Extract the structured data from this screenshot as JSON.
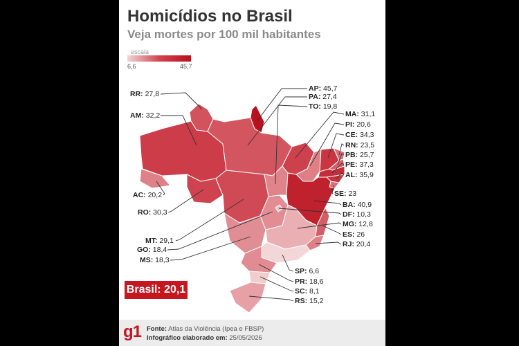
{
  "title": "Homicídios no Brasil",
  "subtitle": "Veja mortes por 100 mil habitantes",
  "scale": {
    "label": "escala",
    "min": "6,6",
    "max": "45,7",
    "min_value": 6.6,
    "max_value": 45.7
  },
  "states": [
    {
      "uf": "RR",
      "text": "27,8",
      "value": 27.8
    },
    {
      "uf": "AM",
      "text": "32,2",
      "value": 32.2
    },
    {
      "uf": "AC",
      "text": "20,2",
      "value": 20.2
    },
    {
      "uf": "RO",
      "text": "30,3",
      "value": 30.3
    },
    {
      "uf": "MT",
      "text": "29,1",
      "value": 29.1
    },
    {
      "uf": "GO",
      "text": "18,4",
      "value": 18.4
    },
    {
      "uf": "MS",
      "text": "18,3",
      "value": 18.3
    },
    {
      "uf": "AP",
      "text": "45,7",
      "value": 45.7
    },
    {
      "uf": "PA",
      "text": "27,4",
      "value": 27.4
    },
    {
      "uf": "TO",
      "text": "19,8",
      "value": 19.8
    },
    {
      "uf": "MA",
      "text": "31,1",
      "value": 31.1
    },
    {
      "uf": "PI",
      "text": "20,6",
      "value": 20.6
    },
    {
      "uf": "CE",
      "text": "34,3",
      "value": 34.3
    },
    {
      "uf": "RN",
      "text": "23,5",
      "value": 23.5
    },
    {
      "uf": "PB",
      "text": "25,7",
      "value": 25.7
    },
    {
      "uf": "PE",
      "text": "37,3",
      "value": 37.3
    },
    {
      "uf": "AL",
      "text": "35,9",
      "value": 35.9
    },
    {
      "uf": "SE",
      "text": "23",
      "value": 23.0
    },
    {
      "uf": "BA",
      "text": "40,9",
      "value": 40.9
    },
    {
      "uf": "DF",
      "text": "10,3",
      "value": 10.3
    },
    {
      "uf": "MG",
      "text": "12,8",
      "value": 12.8
    },
    {
      "uf": "ES",
      "text": "26",
      "value": 26.0
    },
    {
      "uf": "RJ",
      "text": "20,4",
      "value": 20.4
    },
    {
      "uf": "SP",
      "text": "6,6",
      "value": 6.6
    },
    {
      "uf": "PR",
      "text": "18,6",
      "value": 18.6
    },
    {
      "uf": "SC",
      "text": "8,1",
      "value": 8.1
    },
    {
      "uf": "RS",
      "text": "15,2",
      "value": 15.2
    }
  ],
  "total": {
    "label": "Brasil:",
    "text": "20,1",
    "value": 20.1
  },
  "footer": {
    "logo": "g1",
    "source_label": "Fonte:",
    "source": "Atlas da Violência (Ipea e FBSP)",
    "date_label": "Infográfico elaborado em:",
    "date": "25/05/2026"
  },
  "colors": {
    "low": "#f3d6d7",
    "mid": "#cf4450",
    "high": "#b8111e",
    "brand": "#c4171f"
  }
}
